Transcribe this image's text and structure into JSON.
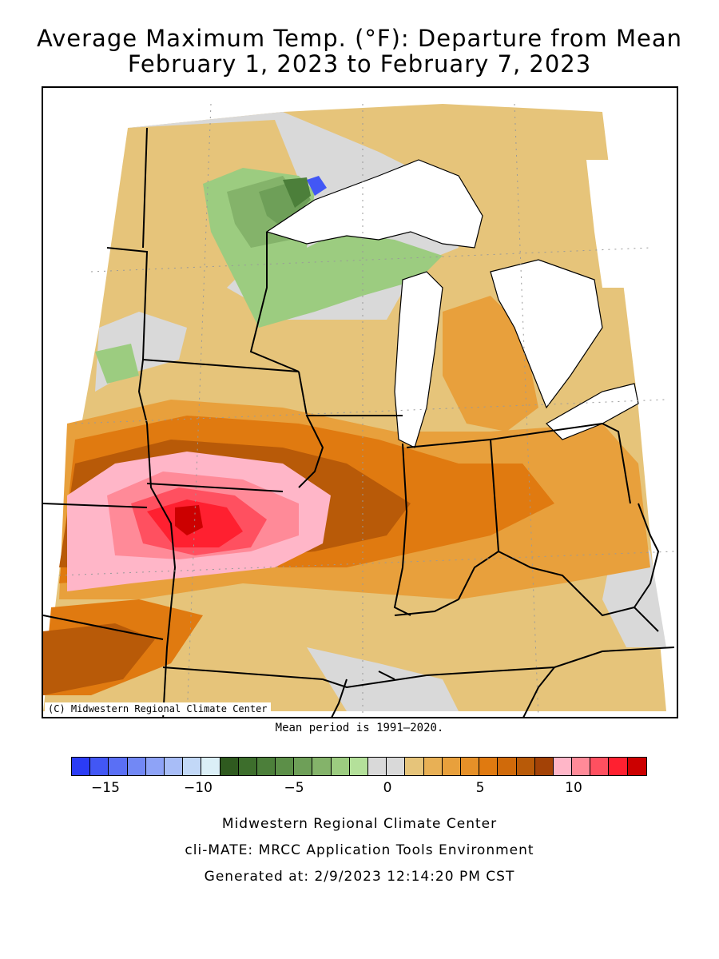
{
  "title_line1": "Average Maximum Temp. (°F): Departure from Mean",
  "title_line2": "February 1, 2023 to February 7, 2023",
  "copyright": "(C) Midwestern Regional Climate Center",
  "mean_period": "Mean period is 1991–2020.",
  "legend": {
    "colors": [
      "#2b3cf5",
      "#4257f5",
      "#5a6ff5",
      "#7288f5",
      "#8ea3f7",
      "#a8bdf7",
      "#c2d8f7",
      "#dbeff7",
      "#2f5a1f",
      "#3d6e2c",
      "#4c7f3a",
      "#5c8f48",
      "#6e9f58",
      "#84b36a",
      "#9ccc80",
      "#b4e09a",
      "#d9d9d9",
      "#d9d9d9",
      "#e6c47a",
      "#e8b055",
      "#e8a03c",
      "#e69028",
      "#e07a10",
      "#d06a0a",
      "#b85a08",
      "#a34206",
      "#ffb6c8",
      "#ff8a98",
      "#ff5060",
      "#ff2030",
      "#cc0000"
    ],
    "ticks": [
      "−15",
      "−10",
      "−5",
      "0",
      "5",
      "10"
    ]
  },
  "footer": {
    "line1": "Midwestern Regional Climate Center",
    "line2": "cli-MATE: MRCC Application Tools Environment",
    "line3": "Generated at: 2/9/2023 12:14:20 PM CST"
  }
}
